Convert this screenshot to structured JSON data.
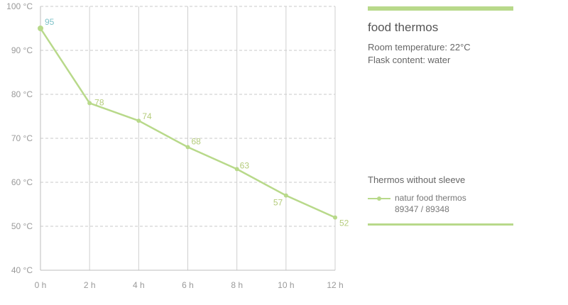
{
  "panel": {
    "title": "food thermos",
    "room_temperature": "Room temperature: 22°C",
    "flask_content": "Flask content: water",
    "legend_title": "Thermos without sleeve",
    "legend_line1": "natur food thermos",
    "legend_line2": "89347 / 89348",
    "accent_color": "#b8d98a"
  },
  "chart_data": {
    "type": "line",
    "x": [
      0,
      2,
      4,
      6,
      8,
      10,
      12
    ],
    "x_tick_labels": [
      "0 h",
      "2 h",
      "4 h",
      "6 h",
      "8 h",
      "10 h",
      "12 h"
    ],
    "y_ticks": [
      40,
      50,
      60,
      70,
      80,
      90,
      100
    ],
    "y_tick_labels": [
      "40 °C",
      "50 °C",
      "60 °C",
      "70 °C",
      "80 °C",
      "90 °C",
      "100 °C"
    ],
    "ylim": [
      40,
      100
    ],
    "xlim": [
      0,
      12
    ],
    "grid": true,
    "series": [
      {
        "name": "natur food thermos 89347 / 89348",
        "values": [
          95,
          78,
          74,
          68,
          63,
          57,
          52
        ],
        "labels": [
          "95",
          "78",
          "74",
          "68",
          "63",
          "57",
          "52"
        ],
        "color": "#b8d98a",
        "first_label_color": "#7fc3c9"
      }
    ]
  }
}
